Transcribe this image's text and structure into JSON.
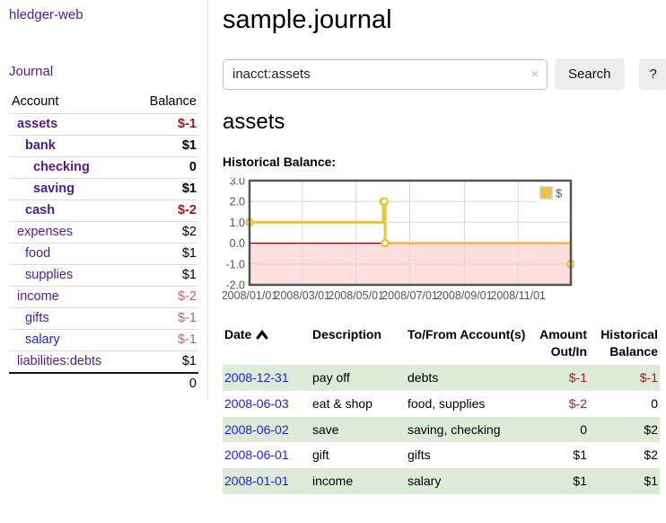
{
  "app_title": "hledger-web",
  "sidebar": {
    "journal_link": "Journal",
    "account_header": "Account",
    "balance_header": "Balance",
    "accounts": [
      {
        "name": "assets",
        "balance": "$-1",
        "depth": 1,
        "bold": true,
        "neg": "strong"
      },
      {
        "name": "bank",
        "balance": "$1",
        "depth": 2,
        "bold": true,
        "neg": "none"
      },
      {
        "name": "checking",
        "balance": "0",
        "depth": 3,
        "bold": true,
        "neg": "none"
      },
      {
        "name": "saving",
        "balance": "$1",
        "depth": 3,
        "bold": true,
        "neg": "none"
      },
      {
        "name": "cash",
        "balance": "$-2",
        "depth": 2,
        "bold": true,
        "neg": "strong"
      },
      {
        "name": "expenses",
        "balance": "$2",
        "depth": 1,
        "bold": false,
        "neg": "none"
      },
      {
        "name": "food",
        "balance": "$1",
        "depth": 2,
        "bold": false,
        "neg": "none"
      },
      {
        "name": "supplies",
        "balance": "$1",
        "depth": 2,
        "bold": false,
        "neg": "none"
      },
      {
        "name": "income",
        "balance": "$-2",
        "depth": 1,
        "bold": false,
        "neg": "soft"
      },
      {
        "name": "gifts",
        "balance": "$-1",
        "depth": 2,
        "bold": false,
        "neg": "soft"
      },
      {
        "name": "salary",
        "balance": "$-1",
        "depth": 2,
        "bold": false,
        "neg": "soft",
        "blue_link": true
      },
      {
        "name": "liabilities:debts",
        "balance": "$1",
        "depth": 1,
        "bold": false,
        "neg": "none"
      }
    ],
    "total": "0"
  },
  "header": {
    "title": "sample.journal"
  },
  "search": {
    "value": "inacct:assets",
    "clear_icon": "×",
    "search_button": "Search",
    "help_button": "?"
  },
  "account_page": {
    "heading": "assets",
    "chart_title": "Historical Balance:"
  },
  "chart_data": {
    "type": "line",
    "title": "Historical Balance",
    "step": true,
    "series": [
      {
        "name": "$",
        "color": "#edc240",
        "points": [
          {
            "date": "2008-01-01",
            "value": 1
          },
          {
            "date": "2008-06-01",
            "value": 2
          },
          {
            "date": "2008-06-02",
            "value": 2
          },
          {
            "date": "2008-06-03",
            "value": 0
          },
          {
            "date": "2008-12-31",
            "value": -1
          }
        ]
      }
    ],
    "xlim": [
      "2008-01-01",
      "2008-12-31"
    ],
    "ylim": [
      -2,
      3
    ],
    "x_ticks": [
      "2008/01/01",
      "2008/03/01",
      "2008/05/01",
      "2008/07/01",
      "2008/09/01",
      "2008/11/01"
    ],
    "y_ticks": [
      "3.0",
      "2.0",
      "1.0",
      "0.0",
      "-1.0",
      "-2.0"
    ],
    "grid": true,
    "legend": {
      "label": "$",
      "position": "top-right"
    },
    "negative_region_color": "#ffdede",
    "zero_line_color": "#8b0000",
    "border_color": "#545454",
    "gridline_color": "#d7d7d7"
  },
  "register": {
    "headers": {
      "date": "Date",
      "description": "Description",
      "accounts": "To/From Account(s)",
      "amount": "Amount Out/In",
      "balance": "Historical Balance"
    },
    "sort": {
      "column": "date",
      "direction": "ascending"
    },
    "rows": [
      {
        "date": "2008-12-31",
        "description": "pay off",
        "accounts": "debts",
        "amount": "$-1",
        "amount_neg": true,
        "balance": "$-1",
        "balance_neg": true
      },
      {
        "date": "2008-06-03",
        "description": "eat & shop",
        "accounts": "food, supplies",
        "amount": "$-2",
        "amount_neg": true,
        "balance": "0",
        "balance_neg": false
      },
      {
        "date": "2008-06-02",
        "description": "save",
        "accounts": "saving, checking",
        "amount": "0",
        "amount_neg": false,
        "balance": "$2",
        "balance_neg": false
      },
      {
        "date": "2008-06-01",
        "description": "gift",
        "accounts": "gifts",
        "amount": "$1",
        "amount_neg": false,
        "balance": "$2",
        "balance_neg": false
      },
      {
        "date": "2008-01-01",
        "description": "income",
        "accounts": "salary",
        "amount": "$1",
        "amount_neg": false,
        "balance": "$1",
        "balance_neg": false
      }
    ]
  },
  "colors": {
    "link_purple": "#551a8b",
    "link_blue": "#2222d2",
    "negative_strong": "#991717",
    "negative_soft": "#b4646c",
    "negative_register": "#9b2525",
    "row_shade_green": "#dcead8",
    "chart_line": "#edc240",
    "chart_negative_fill": "#ffdede",
    "chart_zero_line": "#8b0000"
  }
}
